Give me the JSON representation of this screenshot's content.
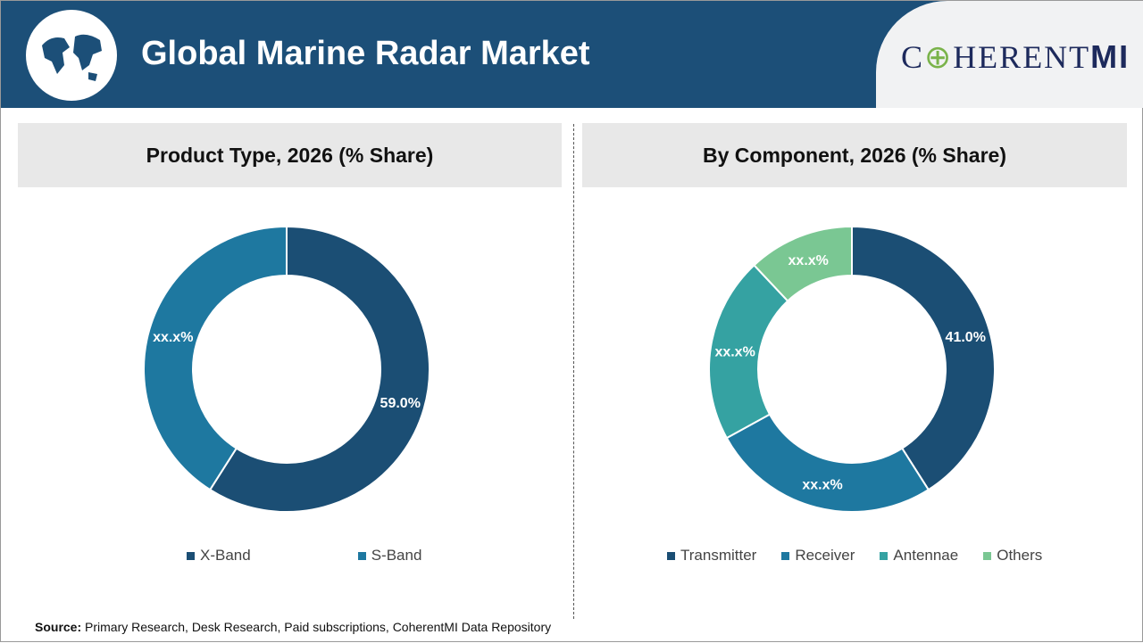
{
  "header": {
    "title": "Global Marine Radar Market",
    "brand": "COHERENTMI",
    "brand_parts": [
      "C",
      "HERENT",
      "MI"
    ]
  },
  "source": {
    "label": "Source:",
    "text": " Primary Research, Desk Research, Paid subscriptions, CoherentMI Data Repository"
  },
  "chart_data": [
    {
      "type": "pie",
      "donut": true,
      "title": "Product Type, 2026 (% Share)",
      "categories": [
        "X-Band",
        "S-Band"
      ],
      "values": [
        59.0,
        41.0
      ],
      "labels": [
        "59.0%",
        "xx.x%"
      ],
      "colors": [
        "#1b4e74",
        "#1e78a0"
      ],
      "legend": "bottom"
    },
    {
      "type": "pie",
      "donut": true,
      "title": "By Component, 2026 (% Share)",
      "categories": [
        "Transmitter",
        "Receiver",
        "Antennae",
        "Others"
      ],
      "values": [
        41.0,
        26,
        21,
        12
      ],
      "labels": [
        "41.0%",
        "xx.x%",
        "xx.x%",
        "xx.x%"
      ],
      "colors": [
        "#1b4e74",
        "#1e78a0",
        "#35a2a2",
        "#7ac793"
      ],
      "legend": "bottom"
    }
  ]
}
